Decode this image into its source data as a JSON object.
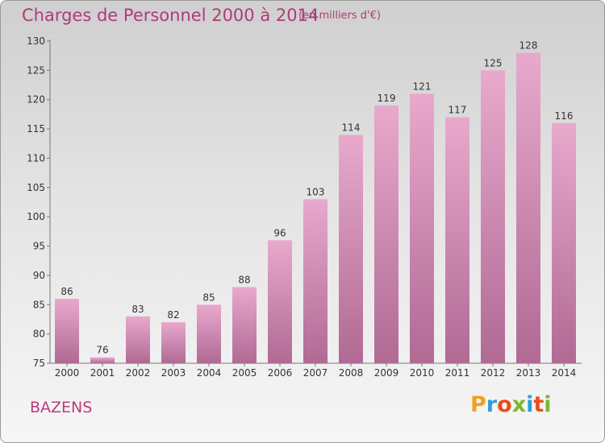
{
  "title": "Charges de Personnel 2000 à 2014",
  "subtitle": "(en milliers d'€)",
  "commune": "BAZENS",
  "logo": [
    "P",
    "r",
    "o",
    "x",
    "i",
    "t",
    "i"
  ],
  "logo_colors": [
    "#f0a020",
    "#2e9fd8",
    "#e94e1b",
    "#7cb82f",
    "#2e9fd8",
    "#e94e1b",
    "#7cb82f"
  ],
  "colors": {
    "bar": "#d989b5",
    "text": "#b03a78"
  },
  "chart_data": {
    "type": "bar",
    "categories": [
      "2000",
      "2001",
      "2002",
      "2003",
      "2004",
      "2005",
      "2006",
      "2007",
      "2008",
      "2009",
      "2010",
      "2011",
      "2012",
      "2013",
      "2014"
    ],
    "values": [
      86,
      76,
      83,
      82,
      85,
      88,
      96,
      103,
      114,
      119,
      121,
      117,
      125,
      128,
      116
    ],
    "ylim": [
      75,
      130
    ],
    "yticks": [
      75,
      80,
      85,
      90,
      95,
      100,
      105,
      110,
      115,
      120,
      125,
      130
    ],
    "grid": false
  }
}
